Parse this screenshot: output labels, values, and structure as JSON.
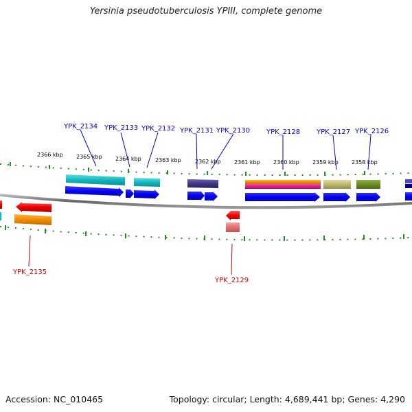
{
  "title": "Yersinia pseudotuberculosis YPIII, complete genome",
  "footer": {
    "accession": "Accession: NC_010465",
    "summary": "Topology: circular; Length: 4,689,441 bp; Genes: 4,290"
  },
  "colors": {
    "backbone": "#777777",
    "tick": "#228B22",
    "forward_label": "#0000CC",
    "reverse_label": "#CC0000"
  },
  "kbp_labels": [
    "2366 kbp",
    "2365 kbp",
    "2364 kbp",
    "2363 kbp",
    "2362 kbp",
    "2361 kbp",
    "2360 kbp",
    "2359 kbp",
    "2358 kbp"
  ],
  "forward_genes": [
    "YPK_2134",
    "YPK_2133",
    "YPK_2132",
    "YPK_2131",
    "YPK_2130",
    "YPK_2128",
    "YPK_2127",
    "YPK_2126"
  ],
  "reverse_genes": [
    "YPK_2135",
    "YPK_2129"
  ]
}
